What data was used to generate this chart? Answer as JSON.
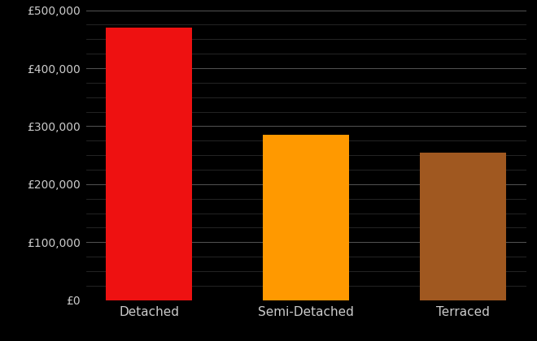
{
  "categories": [
    "Detached",
    "Semi-Detached",
    "Terraced"
  ],
  "values": [
    470000,
    285000,
    255000
  ],
  "bar_colors": [
    "#ee1111",
    "#ff9900",
    "#a05820"
  ],
  "background_color": "#000000",
  "text_color": "#cccccc",
  "major_grid_color": "#555555",
  "minor_grid_color": "#333333",
  "ylim": [
    0,
    500000
  ],
  "yticks": [
    0,
    100000,
    200000,
    300000,
    400000,
    500000
  ],
  "tick_fontsize": 10,
  "label_fontsize": 11,
  "bar_width": 0.55
}
